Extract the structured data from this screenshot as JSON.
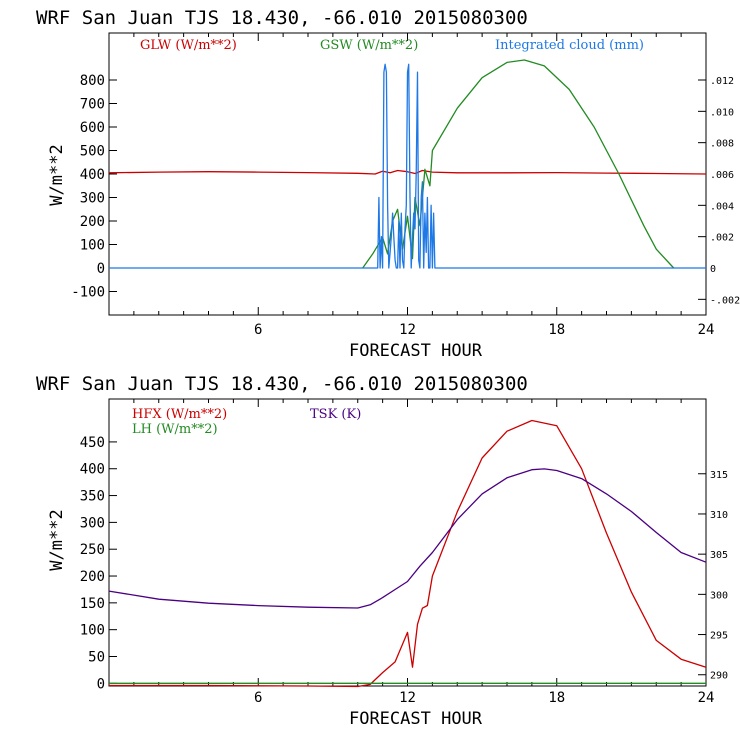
{
  "chart_data": [
    {
      "type": "line",
      "title": "WRF  San Juan TJS  18.430, -66.010  2015080300",
      "xlabel": "FORECAST HOUR",
      "ylabel": "W/m**2",
      "xlim": [
        0,
        24
      ],
      "ylim": [
        -200,
        1000
      ],
      "xticks": [
        "6",
        "12",
        "18",
        "24"
      ],
      "yticks": [
        "-100",
        "0",
        "100",
        "200",
        "300",
        "400",
        "500",
        "600",
        "700",
        "800"
      ],
      "y2lim": [
        -0.003,
        0.015
      ],
      "y2ticks": [
        "-.002",
        "0",
        ".002",
        ".004",
        ".006",
        ".008",
        ".010",
        ".012"
      ],
      "legend_placement": "top",
      "series": [
        {
          "name": "GLW (W/m**2)",
          "color": "#cc0000",
          "axis": "left",
          "x": [
            0,
            2,
            4,
            6,
            8,
            10,
            10.7,
            11,
            11.3,
            11.6,
            12,
            12.3,
            12.6,
            13,
            14,
            16,
            18,
            20,
            22,
            24
          ],
          "y": [
            405,
            408,
            410,
            408,
            406,
            403,
            400,
            412,
            405,
            415,
            410,
            402,
            415,
            408,
            405,
            405,
            406,
            404,
            402,
            400
          ]
        },
        {
          "name": "GSW (W/m**2)",
          "color": "#228b22",
          "axis": "left",
          "x": [
            10.2,
            10.6,
            11,
            11.2,
            11.4,
            11.6,
            11.8,
            12,
            12.2,
            12.3,
            12.5,
            12.7,
            12.9,
            13,
            14,
            15,
            16,
            16.7,
            17.5,
            18.5,
            19.5,
            20.5,
            21.5,
            22,
            22.7
          ],
          "y": [
            0,
            60,
            130,
            60,
            200,
            250,
            80,
            220,
            40,
            300,
            180,
            420,
            350,
            500,
            680,
            810,
            875,
            885,
            860,
            760,
            600,
            400,
            180,
            80,
            0
          ]
        },
        {
          "name": "Integrated cloud (mm)",
          "color": "#1e78e6",
          "axis": "right",
          "x": [
            0,
            10.8,
            10.85,
            10.9,
            10.95,
            11.0,
            11.05,
            11.1,
            11.15,
            11.2,
            11.25,
            11.3,
            11.35,
            11.4,
            11.45,
            11.5,
            11.55,
            11.6,
            11.65,
            11.7,
            11.75,
            11.8,
            11.85,
            11.9,
            11.95,
            12.0,
            12.05,
            12.1,
            12.15,
            12.2,
            12.25,
            12.3,
            12.35,
            12.4,
            12.45,
            12.5,
            12.55,
            12.6,
            12.65,
            12.7,
            12.75,
            12.8,
            12.85,
            12.9,
            12.95,
            13.0,
            13.05,
            13.1,
            24
          ],
          "y": [
            0,
            0,
            0.0045,
            0,
            0.002,
            0,
            0.0125,
            0.013,
            0.0125,
            0.004,
            0,
            0.001,
            0.002,
            0.0035,
            0.002,
            0.0005,
            0,
            0,
            0.003,
            0,
            0.0035,
            0.0005,
            0,
            0.0025,
            0.004,
            0.0125,
            0.013,
            0.0045,
            0,
            0.002,
            0.0035,
            0.0025,
            0.006,
            0.0125,
            0.0005,
            0,
            0.0045,
            0.0055,
            0,
            0.0035,
            0.001,
            0.0045,
            0,
            0,
            0.004,
            0,
            0.0035,
            0,
            0
          ]
        }
      ]
    },
    {
      "type": "line",
      "title": "WRF  San Juan TJS  18.430, -66.010  2015080300",
      "xlabel": "FORECAST HOUR",
      "ylabel": "W/m**2",
      "xlim": [
        0,
        24
      ],
      "ylim": [
        -5,
        530
      ],
      "xticks": [
        "6",
        "12",
        "18",
        "24"
      ],
      "yticks": [
        "0",
        "50",
        "100",
        "150",
        "200",
        "250",
        "300",
        "350",
        "400",
        "450"
      ],
      "y2lim": [
        288.6,
        324.3
      ],
      "y2ticks": [
        "290",
        "295",
        "300",
        "305",
        "310",
        "315"
      ],
      "legend_placement": "top-left",
      "series": [
        {
          "name": "HFX (W/m**2)",
          "color": "#cc0000",
          "axis": "left",
          "x": [
            0,
            4,
            8,
            10,
            10.5,
            11,
            11.5,
            12,
            12.2,
            12.4,
            12.6,
            12.8,
            13,
            14,
            15,
            16,
            17,
            18,
            19,
            20,
            21,
            22,
            23,
            24
          ],
          "y": [
            -4,
            -4,
            -5,
            -6,
            -2,
            20,
            40,
            95,
            30,
            110,
            140,
            145,
            200,
            320,
            420,
            470,
            490,
            480,
            400,
            280,
            170,
            80,
            45,
            30
          ]
        },
        {
          "name": "LH (W/m**2)",
          "color": "#228b22",
          "axis": "left",
          "x": [
            0,
            24
          ],
          "y": [
            0,
            0
          ]
        },
        {
          "name": "TSK (K)",
          "color": "#4b0082",
          "axis": "right",
          "x": [
            0,
            2,
            4,
            6,
            8,
            10,
            10.5,
            11,
            11.5,
            12,
            12.5,
            13,
            14,
            15,
            16,
            17,
            17.5,
            18,
            19,
            20,
            21,
            22,
            23,
            24
          ],
          "y": [
            300.4,
            299.4,
            298.9,
            298.6,
            298.4,
            298.3,
            298.7,
            299.6,
            300.6,
            301.6,
            303.5,
            305.2,
            309.3,
            312.5,
            314.5,
            315.5,
            315.6,
            315.4,
            314.4,
            312.5,
            310.3,
            307.7,
            305.2,
            304.0
          ]
        }
      ]
    }
  ]
}
